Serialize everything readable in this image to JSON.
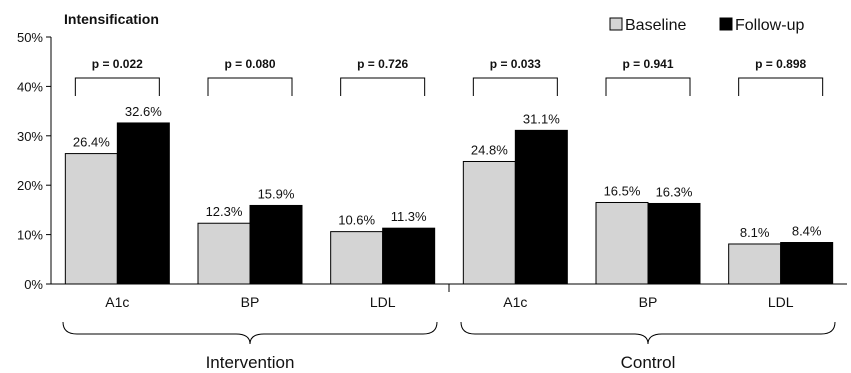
{
  "chart_data": {
    "type": "bar",
    "title": "Intensification",
    "xlabel": "",
    "ylabel": "",
    "ylim": [
      0,
      50
    ],
    "y_ticks": [
      "0%",
      "10%",
      "20%",
      "30%",
      "40%",
      "50%"
    ],
    "y_tick_values": [
      0,
      10,
      20,
      30,
      40,
      50
    ],
    "grid": false,
    "legend_position": "top-right",
    "series": [
      {
        "name": "Baseline",
        "color": "#d4d4d4"
      },
      {
        "name": "Follow-up",
        "color": "#000000"
      }
    ],
    "groups": [
      {
        "label": "Intervention",
        "categories": [
          {
            "label": "A1c",
            "values": [
              26.4,
              32.6
            ],
            "value_labels": [
              "26.4%",
              "32.6%"
            ],
            "p_value": "p = 0.022"
          },
          {
            "label": "BP",
            "values": [
              12.3,
              15.9
            ],
            "value_labels": [
              "12.3%",
              "15.9%"
            ],
            "p_value": "p = 0.080"
          },
          {
            "label": "LDL",
            "values": [
              10.6,
              11.3
            ],
            "value_labels": [
              "10.6%",
              "11.3%"
            ],
            "p_value": "p = 0.726"
          }
        ]
      },
      {
        "label": "Control",
        "categories": [
          {
            "label": "A1c",
            "values": [
              24.8,
              31.1
            ],
            "value_labels": [
              "24.8%",
              "31.1%"
            ],
            "p_value": "p = 0.033"
          },
          {
            "label": "BP",
            "values": [
              16.5,
              16.3
            ],
            "value_labels": [
              "16.5%",
              "16.3%"
            ],
            "p_value": "p = 0.941"
          },
          {
            "label": "LDL",
            "values": [
              8.1,
              8.4
            ],
            "value_labels": [
              "8.1%",
              "8.4%"
            ],
            "p_value": "p = 0.898"
          }
        ]
      }
    ]
  }
}
